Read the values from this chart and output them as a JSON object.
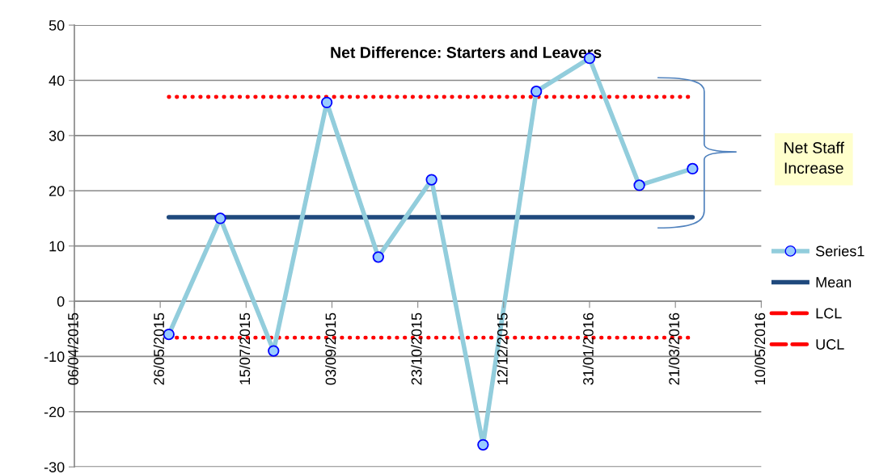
{
  "chart_data": {
    "type": "line",
    "title": "Net Difference: Starters and Leavers",
    "series": [
      {
        "name": "Series1",
        "color": "#92cddc",
        "marker": "circle",
        "line_style": "solid",
        "x": [
          "2015-05-31",
          "2015-06-30",
          "2015-07-31",
          "2015-08-31",
          "2015-09-30",
          "2015-10-31",
          "2015-11-30",
          "2015-12-31",
          "2016-01-31",
          "2016-02-29",
          "2016-03-31"
        ],
        "values": [
          -6,
          15,
          -9,
          36,
          8,
          22,
          -26,
          38,
          44,
          21,
          24
        ]
      },
      {
        "name": "Mean",
        "color": "#1f497d",
        "marker": "none",
        "line_style": "solid",
        "x": [
          "2015-05-31",
          "2016-03-31"
        ],
        "values": [
          15.2,
          15.2
        ]
      },
      {
        "name": "LCL",
        "color": "#ff0000",
        "marker": "none",
        "line_style": "dotted",
        "x": [
          "2015-05-31",
          "2016-03-31"
        ],
        "values": [
          -6.6,
          -6.6
        ]
      },
      {
        "name": "UCL",
        "color": "#ff0000",
        "marker": "none",
        "line_style": "dotted",
        "x": [
          "2015-05-31",
          "2016-03-31"
        ],
        "values": [
          37,
          37
        ]
      }
    ],
    "xlim": [
      "2015-04-06",
      "2016-05-10"
    ],
    "xticks": [
      {
        "value": "2015-04-06",
        "label": "06/04/2015"
      },
      {
        "value": "2015-05-26",
        "label": "26/05/2015"
      },
      {
        "value": "2015-07-15",
        "label": "15/07/2015"
      },
      {
        "value": "2015-09-03",
        "label": "03/09/2015"
      },
      {
        "value": "2015-10-23",
        "label": "23/10/2015"
      },
      {
        "value": "2015-12-12",
        "label": "12/12/2015"
      },
      {
        "value": "2016-01-31",
        "label": "31/01/2016"
      },
      {
        "value": "2016-03-21",
        "label": "21/03/2016"
      },
      {
        "value": "2016-05-10",
        "label": "10/05/2016"
      }
    ],
    "ylim": [
      -30,
      50
    ],
    "yticks": [
      -30,
      -20,
      -10,
      0,
      10,
      20,
      30,
      40,
      50
    ],
    "grid": "y",
    "legend": "right",
    "annotations": [
      "Net Staff\nIncrease"
    ]
  }
}
